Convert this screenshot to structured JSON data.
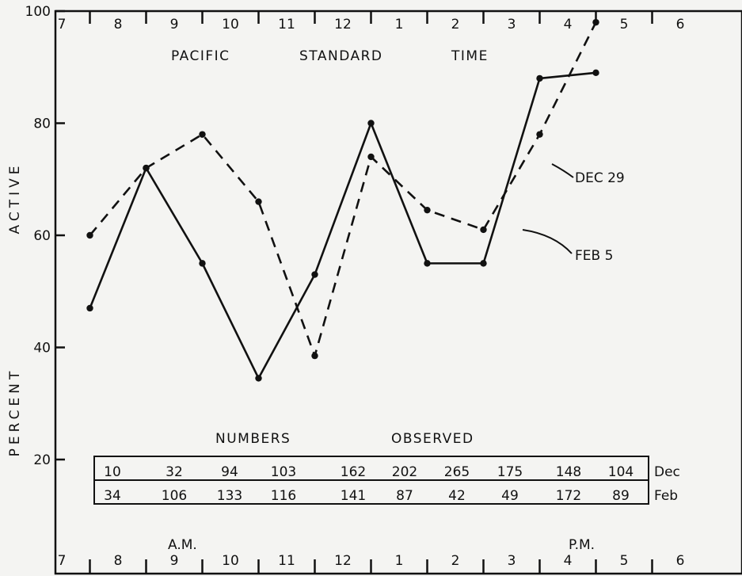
{
  "chart_data": {
    "type": "line",
    "title": "PACIFIC STANDARD TIME",
    "ylabel_top": "ACTIVE",
    "ylabel_bottom": "PERCENT",
    "am_label": "A.M.",
    "pm_label": "P.M.",
    "ylim": [
      0,
      100
    ],
    "yticks": [
      20,
      40,
      60,
      80,
      100
    ],
    "hour_labels": [
      "7",
      "8",
      "9",
      "10",
      "11",
      "12",
      "1",
      "2",
      "3",
      "4",
      "5",
      "6"
    ],
    "x": [
      7.5,
      8.5,
      9.5,
      10.5,
      11.5,
      12.5,
      13.5,
      14.5,
      15.5,
      16.5
    ],
    "series": [
      {
        "name": "DEC 29",
        "style": "dashed",
        "values": [
          60,
          72,
          78,
          66,
          38.5,
          74,
          64.5,
          61,
          78,
          98
        ]
      },
      {
        "name": "FEB 5",
        "style": "solid",
        "values": [
          47,
          72,
          55,
          34.5,
          53,
          80,
          55,
          55,
          88,
          89
        ]
      }
    ],
    "numbers_observed": {
      "title_left": "NUMBERS",
      "title_right": "OBSERVED",
      "rows": [
        {
          "label": "Dec",
          "values": [
            "10",
            "32",
            "94",
            "103",
            "162",
            "202",
            "265",
            "175",
            "148",
            "104"
          ]
        },
        {
          "label": "Feb",
          "values": [
            "34",
            "106",
            "133",
            "116",
            "141",
            "87",
            "42",
            "49",
            "172",
            "89"
          ]
        }
      ]
    },
    "grid": false
  }
}
